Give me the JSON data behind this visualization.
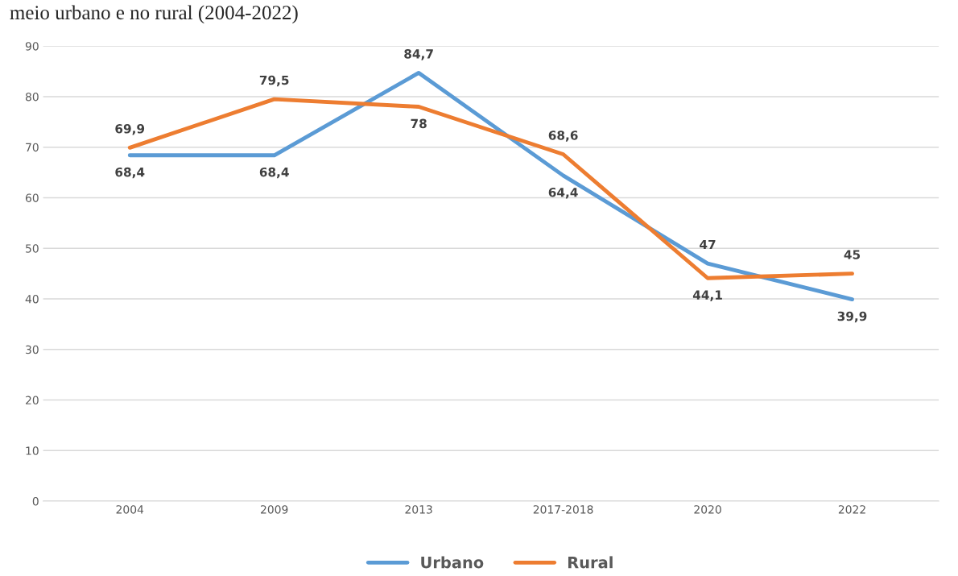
{
  "chart_data": {
    "type": "line",
    "title": "meio urbano e no rural (2004-2022)",
    "categories": [
      "2004",
      "2009",
      "2013",
      "2017-2018",
      "2020",
      "2022"
    ],
    "series": [
      {
        "name": "Urbano",
        "color": "#5b9bd5",
        "values": [
          68.4,
          68.4,
          84.7,
          64.4,
          47,
          39.9
        ],
        "value_labels": [
          "68,4",
          "68,4",
          "84,7",
          "64,4",
          "47",
          "39,9"
        ]
      },
      {
        "name": "Rural",
        "color": "#ed7d31",
        "values": [
          69.9,
          79.5,
          78,
          68.6,
          44.1,
          45
        ],
        "value_labels": [
          "69,9",
          "79,5",
          "78",
          "68,6",
          "44,1",
          "45"
        ]
      }
    ],
    "ylim": [
      0,
      90
    ],
    "yticks": [
      0,
      10,
      20,
      30,
      40,
      50,
      60,
      70,
      80,
      90
    ],
    "grid": "y",
    "legend": "bottom",
    "marker": "none",
    "line_style": "solid"
  }
}
